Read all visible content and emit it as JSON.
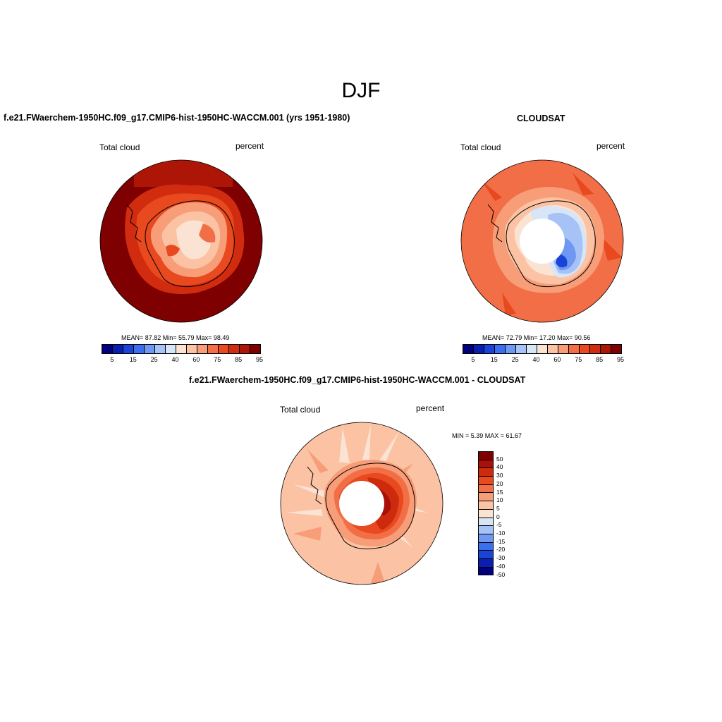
{
  "figure": {
    "title": "DJF",
    "variable_label": "Total cloud",
    "units_label": "percent"
  },
  "panels": {
    "model": {
      "title": "f.e21.FWaerchem-1950HC.f09_g17.CMIP6-hist-1950HC-WACCM.001 (yrs 1951-1980)",
      "stats": "MEAN=  87.82  Min=  55.79  Max=  98.49"
    },
    "obs": {
      "title": "CLOUDSAT",
      "stats": "MEAN=  72.79  Min=  17.20  Max=  90.56"
    },
    "diff": {
      "title": "f.e21.FWaerchem-1950HC.f09_g17.CMIP6-hist-1950HC-WACCM.001 - CLOUDSAT",
      "stats": "MIN =   5.39 MAX =  61.67"
    }
  },
  "colorbars": {
    "abs": {
      "colors": [
        "#00007f",
        "#0a1eaf",
        "#1a44d8",
        "#3b6fee",
        "#6f98f3",
        "#a7c2f6",
        "#d7e6f6",
        "#fbe3d4",
        "#fbc3a4",
        "#f79d78",
        "#f26e46",
        "#e8491f",
        "#d22c10",
        "#ad1607",
        "#7f0000"
      ],
      "labels": [
        "5",
        "15",
        "25",
        "40",
        "60",
        "75",
        "85",
        "95"
      ]
    },
    "diff": {
      "colors": [
        "#7f0000",
        "#a81008",
        "#cd2a0e",
        "#e74a1f",
        "#f26e46",
        "#f79d78",
        "#fbc3a4",
        "#fbe3d4",
        "#d7e6f6",
        "#a7c2f6",
        "#6f98f3",
        "#3b6fee",
        "#1a44d8",
        "#0a1eaf",
        "#00007f"
      ],
      "labels": [
        "50",
        "40",
        "30",
        "20",
        "15",
        "10",
        "5",
        "0",
        "-5",
        "-10",
        "-15",
        "-20",
        "-30",
        "-40",
        "-50"
      ]
    }
  }
}
